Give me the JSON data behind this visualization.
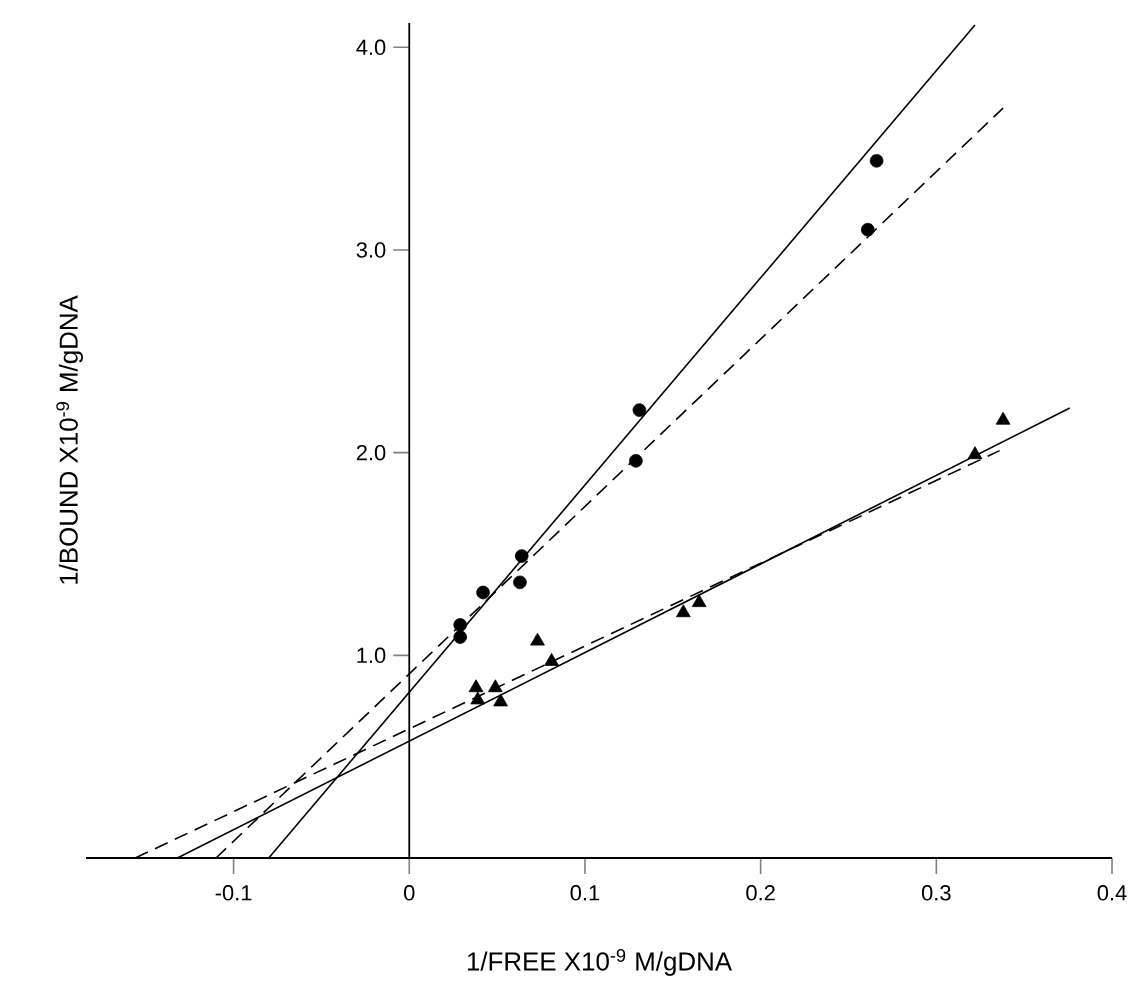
{
  "chart_data": {
    "type": "scatter",
    "xlabel": "1/FREE X10$^{-9}$ M/gDNA",
    "ylabel": "1/BOUND X10$^{-9}$ M/gDNA",
    "xlim": [
      -0.184,
      0.4
    ],
    "ylim": [
      0,
      4.12
    ],
    "xticks": [
      -0.1,
      0,
      0.1,
      0.2,
      0.3,
      0.4
    ],
    "yticks": [
      {
        "value": 1,
        "label": "1.0"
      },
      {
        "value": 2,
        "label": "2.0"
      },
      {
        "value": 3,
        "label": "3.0"
      },
      {
        "value": 4,
        "label": "4.0"
      }
    ],
    "series": [
      {
        "marker": "circle",
        "color": "#000000",
        "x": [
          0.029,
          0.042,
          0.064,
          0.131,
          0.266
        ],
        "values": [
          1.09,
          1.31,
          1.49,
          2.21,
          3.44
        ]
      },
      {
        "marker": "circle",
        "color": "#000000",
        "x": [
          0.029,
          0.063,
          0.129,
          0.261
        ],
        "values": [
          1.15,
          1.36,
          1.96,
          3.1
        ]
      },
      {
        "marker": "triangle",
        "color": "#000000",
        "x": [
          0.038,
          0.052,
          0.081,
          0.165,
          0.338
        ],
        "values": [
          0.84,
          0.77,
          0.97,
          1.26,
          2.16
        ]
      },
      {
        "marker": "triangle",
        "color": "#000000",
        "x": [
          0.039,
          0.049,
          0.073,
          0.156,
          0.322
        ],
        "values": [
          0.78,
          0.84,
          1.07,
          1.21,
          1.99
        ]
      },
      {
        "type": "line",
        "line_style": "solid",
        "color": "#000000",
        "x": [
          -0.08,
          0.322
        ],
        "values": [
          0,
          4.11
        ]
      },
      {
        "type": "line",
        "line_style": "dashed",
        "color": "#000000",
        "x": [
          -0.11,
          0.338
        ],
        "values": [
          0,
          3.7
        ]
      },
      {
        "type": "line",
        "line_style": "solid",
        "color": "#000000",
        "x": [
          -0.132,
          0.376
        ],
        "values": [
          0,
          2.22
        ]
      },
      {
        "type": "line",
        "line_style": "dashed",
        "color": "#000000",
        "x": [
          -0.156,
          0.336
        ],
        "values": [
          0,
          2.01
        ]
      }
    ]
  }
}
